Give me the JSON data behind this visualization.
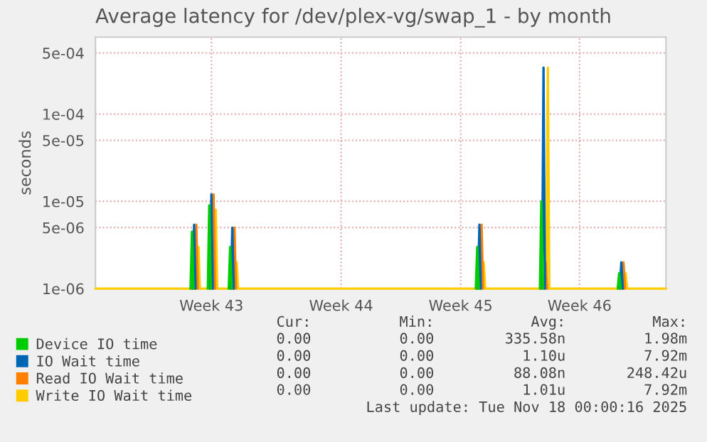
{
  "chart_data": {
    "type": "line",
    "title": "Average latency for /dev/plex-vg/swap_1 - by month",
    "ylabel": "seconds",
    "series": [
      {
        "name": "Device IO time",
        "color": "#00cc00",
        "x": [
          "2025-10-21T12:00",
          "2025-10-21T14:00",
          "2025-10-21T16:00",
          "2025-10-22T00:00",
          "2025-10-22T12:00",
          "2025-10-22T14:00",
          "2025-10-22T16:00",
          "2025-10-23T00:00",
          "2025-10-23T17:00",
          "2025-10-23T19:00",
          "2025-10-23T21:00",
          "2025-10-24T12:00",
          "2025-11-07T00:00",
          "2025-11-07T02:00",
          "2025-11-07T04:00",
          "2025-11-08T00:00",
          "2025-11-10T17:00",
          "2025-11-10T19:00",
          "2025-11-10T21:00",
          "2025-11-12T00:00",
          "2025-11-15T05:00",
          "2025-11-15T07:00",
          "2025-11-15T09:00"
        ],
        "values": [
          1e-06,
          4.5e-06,
          1e-06,
          null,
          1e-06,
          9e-06,
          1e-06,
          null,
          1e-06,
          3e-06,
          1e-06,
          null,
          1e-06,
          3e-06,
          1e-06,
          null,
          1e-06,
          1e-05,
          1e-06,
          null,
          1e-06,
          1.5e-06,
          1e-06
        ]
      },
      {
        "name": "IO Wait time",
        "color": "#0066b3",
        "x": [
          "2025-10-21T15:00",
          "2025-10-21T17:00",
          "2025-10-21T19:00",
          "2025-10-22T00:00",
          "2025-10-22T15:00",
          "2025-10-22T17:00",
          "2025-10-22T19:00",
          "2025-10-23T00:00",
          "2025-10-23T20:00",
          "2025-10-23T22:00",
          "2025-10-24T00:00",
          "2025-10-24T12:00",
          "2025-11-07T03:00",
          "2025-11-07T05:00",
          "2025-11-07T07:00",
          "2025-11-08T00:00",
          "2025-11-10T20:00",
          "2025-11-10T22:00",
          "2025-11-11T00:00",
          "2025-11-12T00:00",
          "2025-11-15T08:00",
          "2025-11-15T10:00",
          "2025-11-15T12:00"
        ],
        "values": [
          1e-06,
          5.4e-06,
          1e-06,
          null,
          1e-06,
          1.2e-05,
          1e-06,
          null,
          1e-06,
          5e-06,
          1e-06,
          null,
          1e-06,
          5.4e-06,
          1e-06,
          null,
          1e-06,
          0.00034,
          1e-06,
          null,
          1e-06,
          2e-06,
          1e-06
        ]
      },
      {
        "name": "Read IO Wait time",
        "color": "#ff8000",
        "x": [
          "2025-10-21T18:00",
          "2025-10-21T20:00",
          "2025-10-21T22:00",
          "2025-10-22T00:00",
          "2025-10-22T18:00",
          "2025-10-22T20:00",
          "2025-10-22T22:00",
          "2025-10-23T00:00",
          "2025-10-23T23:00",
          "2025-10-24T01:00",
          "2025-10-24T03:00",
          "2025-10-24T12:00",
          "2025-11-07T06:00",
          "2025-11-07T08:00",
          "2025-11-07T10:00",
          "2025-11-08T00:00",
          "2025-11-10T23:00",
          "2025-11-11T01:00",
          "2025-11-11T03:00",
          "2025-11-12T00:00",
          "2025-11-15T11:00",
          "2025-11-15T13:00",
          "2025-11-15T15:00"
        ],
        "values": [
          1e-06,
          5.4e-06,
          1e-06,
          null,
          1e-06,
          1.2e-05,
          1e-06,
          null,
          1e-06,
          5e-06,
          1e-06,
          null,
          1e-06,
          5.4e-06,
          1e-06,
          null,
          1e-06,
          2e-06,
          1e-06,
          null,
          1e-06,
          2e-06,
          1e-06
        ]
      },
      {
        "name": "Write IO Wait time",
        "color": "#ffcc00",
        "x": [
          "2025-10-16T00:00",
          "2025-10-21T21:00",
          "2025-10-21T23:00",
          "2025-10-22T01:00",
          "2025-10-22T21:00",
          "2025-10-22T23:00",
          "2025-10-23T01:00",
          "2025-10-24T02:00",
          "2025-10-24T04:00",
          "2025-10-24T06:00",
          "2025-11-07T09:00",
          "2025-11-07T11:00",
          "2025-11-07T13:00",
          "2025-11-11T02:00",
          "2025-11-11T04:00",
          "2025-11-11T06:00",
          "2025-11-15T14:00",
          "2025-11-15T16:00",
          "2025-11-15T18:00",
          "2025-11-18T00:00"
        ],
        "values": [
          1e-06,
          1e-06,
          3e-06,
          1e-06,
          1e-06,
          8e-06,
          1e-06,
          1e-06,
          2e-06,
          1e-06,
          1e-06,
          2e-06,
          1e-06,
          1e-06,
          0.00034,
          1e-06,
          1e-06,
          1.5e-06,
          1e-06,
          1e-06
        ]
      }
    ],
    "log": true,
    "xlim": [
      "2025-10-16T00:00",
      "2025-11-18T00:00"
    ],
    "xticks": [
      {
        "value": "2025-10-22T17:00",
        "label": "Week 43"
      },
      {
        "value": "2025-10-30T05:00",
        "label": "Week 44"
      },
      {
        "value": "2025-11-06T03:00",
        "label": "Week 45"
      },
      {
        "value": "2025-11-13T00:00",
        "label": "Week 46"
      }
    ],
    "ylim": [
      1e-06,
      0.00076
    ],
    "yticks": [
      {
        "value": 1e-06,
        "label": "1e-06"
      },
      {
        "value": 5e-06,
        "label": "5e-06"
      },
      {
        "value": 1e-05,
        "label": "1e-05"
      },
      {
        "value": 5e-05,
        "label": "5e-05"
      },
      {
        "value": 0.0001,
        "label": "1e-04"
      },
      {
        "value": 0.0005,
        "label": "5e-04"
      }
    ],
    "grid": true,
    "legend": "bottom",
    "annotations": [
      "Cur:",
      "Min:",
      "Avg:",
      "Max:",
      "0.00",
      "0.00",
      "335.58n",
      "1.98m",
      "0.00",
      "0.00",
      "1.10u",
      "7.92m",
      "0.00",
      "0.00",
      "88.08n",
      "248.42u",
      "0.00",
      "0.00",
      "1.01u",
      "7.92m",
      "Last update: Tue Nov 18 00:00:16 2025"
    ]
  }
}
